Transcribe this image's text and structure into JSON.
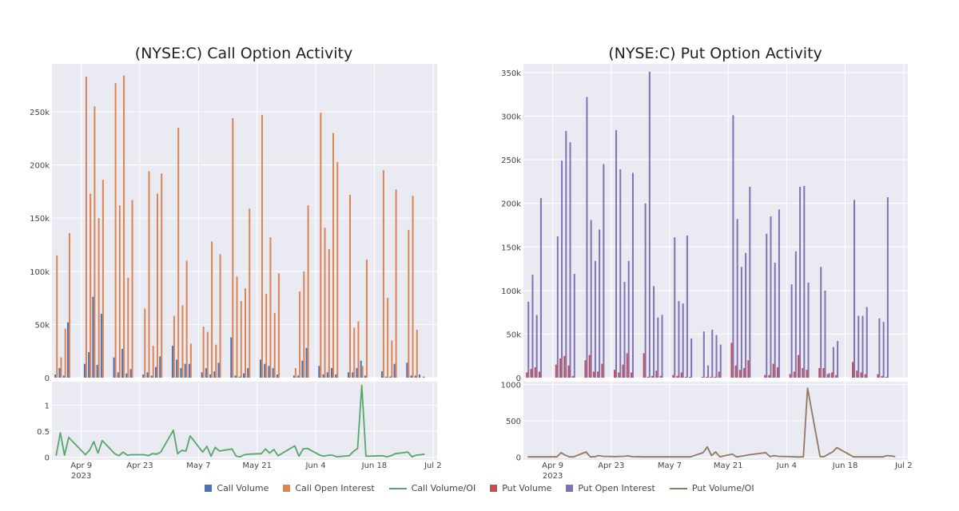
{
  "chart_data": {
    "type": "bar",
    "dates": [
      "2023-04-03",
      "2023-04-04",
      "2023-04-05",
      "2023-04-06",
      "2023-04-10",
      "2023-04-11",
      "2023-04-12",
      "2023-04-13",
      "2023-04-14",
      "2023-04-17",
      "2023-04-18",
      "2023-04-19",
      "2023-04-20",
      "2023-04-21",
      "2023-04-24",
      "2023-04-25",
      "2023-04-26",
      "2023-04-27",
      "2023-04-28",
      "2023-05-01",
      "2023-05-02",
      "2023-05-03",
      "2023-05-04",
      "2023-05-05",
      "2023-05-08",
      "2023-05-09",
      "2023-05-10",
      "2023-05-11",
      "2023-05-12",
      "2023-05-15",
      "2023-05-16",
      "2023-05-17",
      "2023-05-18",
      "2023-05-19",
      "2023-05-22",
      "2023-05-23",
      "2023-05-24",
      "2023-05-25",
      "2023-05-26",
      "2023-05-30",
      "2023-05-31",
      "2023-06-01",
      "2023-06-02",
      "2023-06-05",
      "2023-06-06",
      "2023-06-07",
      "2023-06-08",
      "2023-06-09",
      "2023-06-12",
      "2023-06-13",
      "2023-06-14",
      "2023-06-15",
      "2023-06-16",
      "2023-06-20",
      "2023-06-21",
      "2023-06-22",
      "2023-06-23",
      "2023-06-26",
      "2023-06-27",
      "2023-06-28",
      "2023-06-29",
      "2023-06-30"
    ],
    "x_ticks": [
      "Apr 9",
      "Apr 23",
      "May 7",
      "May 21",
      "Jun 4",
      "Jun 18",
      "Jul 2"
    ],
    "x_tick_dates": [
      "2023-04-09",
      "2023-04-23",
      "2023-05-07",
      "2023-05-21",
      "2023-06-04",
      "2023-06-18",
      "2023-07-02"
    ],
    "x_year_label": "2023",
    "x_range": [
      "2023-04-02",
      "2023-07-03"
    ],
    "legend": [
      "Call Volume",
      "Call Open Interest",
      "Call Volume/OI",
      "Put Volume",
      "Put Open Interest",
      "Put Volume/OI"
    ],
    "legend_position": "bottom-center",
    "grid": true,
    "colors": {
      "call_volume": "#4c72b0",
      "call_oi": "#dd8452",
      "call_ratio": "#55a868",
      "put_volume": "#c44e52",
      "put_oi": "#8172b3",
      "put_ratio": "#937860",
      "plot_bg": "#eaeaf2"
    },
    "panels": [
      {
        "title": "(NYSE:C) Call Option Activity",
        "top": {
          "ylim": [
            0,
            295000
          ],
          "y_ticks": [
            0,
            50000,
            100000,
            150000,
            200000,
            250000
          ],
          "y_tick_labels": [
            "0",
            "50k",
            "100k",
            "150k",
            "200k",
            "250k"
          ],
          "series": [
            {
              "name": "Call Volume",
              "key": "call_volume",
              "values": [
                3000,
                9000,
                2000,
                52000,
                13000,
                24000,
                76000,
                12000,
                60000,
                19000,
                5000,
                27000,
                4000,
                8000,
                3000,
                5000,
                2000,
                10000,
                20000,
                30000,
                17000,
                9000,
                13000,
                13000,
                5000,
                9000,
                3000,
                6000,
                14000,
                38000,
                2000,
                1000,
                4000,
                9000,
                17000,
                13000,
                11000,
                9000,
                3000,
                2000,
                2000,
                16000,
                28000,
                11000,
                3000,
                5000,
                9000,
                3000,
                5000,
                5000,
                9000,
                16000,
                2000,
                6000,
                1000,
                1000,
                13000,
                14000,
                2000,
                2000,
                3000,
                1000
              ]
            },
            {
              "name": "Call Open Interest",
              "key": "call_oi",
              "values": [
                115000,
                19000,
                46000,
                136000,
                283000,
                173000,
                255000,
                150000,
                186000,
                277000,
                162000,
                284000,
                94000,
                167000,
                65000,
                194000,
                30000,
                173000,
                192000,
                58000,
                235000,
                68000,
                110000,
                32000,
                48000,
                43000,
                128000,
                31000,
                116000,
                244000,
                95000,
                72000,
                84000,
                159000,
                247000,
                79000,
                132000,
                61000,
                98000,
                9000,
                81000,
                100000,
                162000,
                249000,
                141000,
                121000,
                230000,
                203000,
                172000,
                47000,
                53000,
                11000,
                111000,
                195000,
                75000,
                35000,
                177000,
                139000,
                171000,
                45000,
                0,
                0
              ]
            }
          ]
        },
        "bottom": {
          "ylim": [
            -0.05,
            1.45
          ],
          "y_ticks": [
            0,
            0.5,
            1
          ],
          "y_tick_labels": [
            "0",
            "0.5",
            "1"
          ],
          "series": [
            {
              "name": "Call Volume/OI",
              "key": "call_ratio",
              "values": [
                0.03,
                0.47,
                0.04,
                0.38,
                0.05,
                0.14,
                0.3,
                0.08,
                0.32,
                0.07,
                0.03,
                0.1,
                0.04,
                0.05,
                0.05,
                0.03,
                0.07,
                0.06,
                0.1,
                0.52,
                0.07,
                0.13,
                0.12,
                0.41,
                0.1,
                0.21,
                0.02,
                0.19,
                0.12,
                0.16,
                0.02,
                0.01,
                0.05,
                0.06,
                0.07,
                0.16,
                0.08,
                0.15,
                0.03,
                0.22,
                0.02,
                0.16,
                0.17,
                0.04,
                0.02,
                0.04,
                0.04,
                0.01,
                0.03,
                0.11,
                0.17,
                1.38,
                0.02,
                0.03,
                0.01,
                0.03,
                0.07,
                0.1,
                0.01,
                0.04,
                0.05,
                0.06
              ]
            }
          ]
        }
      },
      {
        "title": "(NYSE:C) Put Option Activity",
        "top": {
          "ylim": [
            0,
            360000
          ],
          "y_ticks": [
            0,
            50000,
            100000,
            150000,
            200000,
            250000,
            300000,
            350000
          ],
          "y_tick_labels": [
            "0",
            "50k",
            "100k",
            "150k",
            "200k",
            "250k",
            "300k",
            "350k"
          ],
          "series": [
            {
              "name": "Put Volume",
              "key": "put_volume",
              "values": [
                6000,
                10000,
                12000,
                7000,
                15000,
                22000,
                25000,
                14000,
                2000,
                20000,
                26000,
                7000,
                7000,
                16000,
                9000,
                6000,
                15000,
                28000,
                6000,
                28000,
                1000,
                2000,
                8000,
                2000,
                3000,
                2000,
                6000,
                1000,
                1000,
                1000,
                1000,
                1000,
                1000,
                7000,
                40000,
                14000,
                9000,
                11000,
                20000,
                3000,
                3000,
                16000,
                12000,
                4000,
                7000,
                26000,
                11000,
                9000,
                11000,
                11000,
                4000,
                6000,
                3000,
                18000,
                8000,
                6000,
                4000,
                4000,
                2000,
                1000,
                0,
                0
              ]
            },
            {
              "name": "Put Open Interest",
              "key": "put_oi",
              "values": [
                87000,
                118000,
                72000,
                206000,
                162000,
                249000,
                283000,
                270000,
                119000,
                322000,
                181000,
                134000,
                170000,
                245000,
                284000,
                239000,
                110000,
                134000,
                235000,
                200000,
                351000,
                105000,
                69000,
                72000,
                161000,
                88000,
                85000,
                163000,
                45000,
                53000,
                14000,
                55000,
                49000,
                38000,
                301000,
                182000,
                127000,
                143000,
                219000,
                165000,
                185000,
                132000,
                193000,
                107000,
                145000,
                219000,
                220000,
                109000,
                127000,
                100000,
                5000,
                35000,
                42000,
                204000,
                71000,
                71000,
                81000,
                68000,
                64000,
                207000,
                0,
                0
              ]
            }
          ]
        },
        "bottom": {
          "ylim": [
            -40,
            1040
          ],
          "y_ticks": [
            0,
            500,
            1000
          ],
          "y_tick_labels": [
            "0",
            "500",
            "1000"
          ],
          "series": [
            {
              "name": "Put Volume/OI",
              "key": "put_ratio",
              "values": [
                2,
                2,
                2,
                2,
                2,
                60,
                25,
                2,
                2,
                70,
                2,
                3,
                20,
                10,
                5,
                8,
                10,
                15,
                5,
                2,
                2,
                2,
                2,
                2,
                2,
                2,
                2,
                2,
                2,
                60,
                140,
                20,
                70,
                3,
                40,
                2,
                10,
                20,
                30,
                60,
                5,
                20,
                10,
                5,
                2,
                1,
                2,
                950,
                5,
                5,
                40,
                70,
                130,
                2,
                2,
                2,
                2,
                2,
                2,
                20,
                15,
                5
              ]
            }
          ]
        }
      }
    ]
  }
}
